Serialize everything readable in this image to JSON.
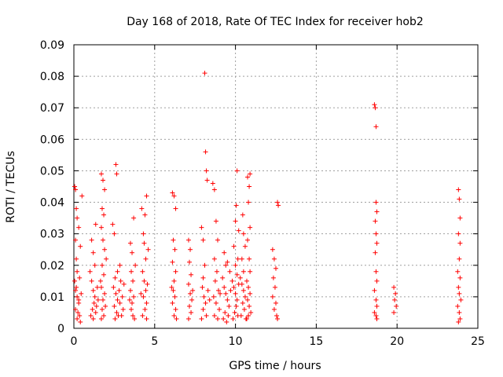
{
  "chart_data": {
    "type": "scatter",
    "title": "Day 168 of 2018, Rate Of TEC Index for receiver hob2",
    "xlabel": "GPS time / hours",
    "ylabel": "ROTI / TECUs",
    "xlim": [
      0,
      25
    ],
    "ylim": [
      0,
      0.09
    ],
    "x_ticks": [
      0,
      5,
      10,
      15,
      20,
      25
    ],
    "y_ticks": [
      0,
      0.01,
      0.02,
      0.03,
      0.04,
      0.05,
      0.06,
      0.07,
      0.08,
      0.09
    ],
    "y_tick_labels": [
      "0",
      "0.01",
      "0.02",
      "0.03",
      "0.04",
      "0.05",
      "0.06",
      "0.07",
      "0.08",
      "0.09"
    ],
    "grid": true,
    "marker": "+",
    "color": "#ff0000",
    "series": [
      {
        "points": [
          [
            0.05,
            0.045
          ],
          [
            0.1,
            0.044
          ],
          [
            0.15,
            0.038
          ],
          [
            0.2,
            0.035
          ],
          [
            0.3,
            0.032
          ],
          [
            0.1,
            0.028
          ],
          [
            0.15,
            0.022
          ],
          [
            0.2,
            0.018
          ],
          [
            0.05,
            0.015
          ],
          [
            0.1,
            0.012
          ],
          [
            0.2,
            0.01
          ],
          [
            0.3,
            0.008
          ],
          [
            0.1,
            0.006
          ],
          [
            0.25,
            0.005
          ],
          [
            0.35,
            0.004
          ],
          [
            0.2,
            0.003
          ],
          [
            0.4,
            0.002
          ],
          [
            0.3,
            0.009
          ],
          [
            0.15,
            0.013
          ],
          [
            0.45,
            0.011
          ],
          [
            0.5,
            0.042
          ],
          [
            0.4,
            0.026
          ],
          [
            0.35,
            0.016
          ],
          [
            1.0,
            0.018
          ],
          [
            1.1,
            0.015
          ],
          [
            1.2,
            0.012
          ],
          [
            1.3,
            0.01
          ],
          [
            1.25,
            0.008
          ],
          [
            1.15,
            0.006
          ],
          [
            1.35,
            0.005
          ],
          [
            1.05,
            0.004
          ],
          [
            1.2,
            0.003
          ],
          [
            1.4,
            0.007
          ],
          [
            1.3,
            0.02
          ],
          [
            1.2,
            0.024
          ],
          [
            1.1,
            0.028
          ],
          [
            1.35,
            0.033
          ],
          [
            1.45,
            0.013
          ],
          [
            1.5,
            0.009
          ],
          [
            1.7,
            0.049
          ],
          [
            1.8,
            0.047
          ],
          [
            1.9,
            0.044
          ],
          [
            1.75,
            0.038
          ],
          [
            1.85,
            0.036
          ],
          [
            1.7,
            0.032
          ],
          [
            1.8,
            0.028
          ],
          [
            1.9,
            0.025
          ],
          [
            1.75,
            0.02
          ],
          [
            1.85,
            0.017
          ],
          [
            1.7,
            0.013
          ],
          [
            1.9,
            0.011
          ],
          [
            1.8,
            0.009
          ],
          [
            1.75,
            0.006
          ],
          [
            1.85,
            0.004
          ],
          [
            1.7,
            0.003
          ],
          [
            1.95,
            0.007
          ],
          [
            1.65,
            0.015
          ],
          [
            2.0,
            0.022
          ],
          [
            2.4,
            0.033
          ],
          [
            2.5,
            0.03
          ],
          [
            2.6,
            0.052
          ],
          [
            2.65,
            0.049
          ],
          [
            2.55,
            0.016
          ],
          [
            2.45,
            0.013
          ],
          [
            2.6,
            0.011
          ],
          [
            2.7,
            0.009
          ],
          [
            2.5,
            0.007
          ],
          [
            2.65,
            0.005
          ],
          [
            2.75,
            0.004
          ],
          [
            2.55,
            0.003
          ],
          [
            2.8,
            0.012
          ],
          [
            2.9,
            0.015
          ],
          [
            3.0,
            0.01
          ],
          [
            2.85,
            0.008
          ],
          [
            3.05,
            0.006
          ],
          [
            2.95,
            0.004
          ],
          [
            3.1,
            0.014
          ],
          [
            2.7,
            0.018
          ],
          [
            2.85,
            0.02
          ],
          [
            3.5,
            0.027
          ],
          [
            3.6,
            0.024
          ],
          [
            3.7,
            0.035
          ],
          [
            3.55,
            0.018
          ],
          [
            3.65,
            0.015
          ],
          [
            3.5,
            0.012
          ],
          [
            3.7,
            0.01
          ],
          [
            3.6,
            0.008
          ],
          [
            3.55,
            0.006
          ],
          [
            3.65,
            0.004
          ],
          [
            3.75,
            0.003
          ],
          [
            3.45,
            0.009
          ],
          [
            3.8,
            0.02
          ],
          [
            4.2,
            0.038
          ],
          [
            4.3,
            0.03
          ],
          [
            4.5,
            0.042
          ],
          [
            4.4,
            0.036
          ],
          [
            4.35,
            0.027
          ],
          [
            4.45,
            0.022
          ],
          [
            4.25,
            0.018
          ],
          [
            4.35,
            0.015
          ],
          [
            4.45,
            0.012
          ],
          [
            4.3,
            0.01
          ],
          [
            4.5,
            0.008
          ],
          [
            4.4,
            0.006
          ],
          [
            4.25,
            0.004
          ],
          [
            4.5,
            0.003
          ],
          [
            4.15,
            0.011
          ],
          [
            4.55,
            0.014
          ],
          [
            4.6,
            0.025
          ],
          [
            6.1,
            0.043
          ],
          [
            6.2,
            0.042
          ],
          [
            6.3,
            0.038
          ],
          [
            6.15,
            0.028
          ],
          [
            6.25,
            0.025
          ],
          [
            6.1,
            0.021
          ],
          [
            6.3,
            0.018
          ],
          [
            6.2,
            0.015
          ],
          [
            6.15,
            0.012
          ],
          [
            6.25,
            0.01
          ],
          [
            6.1,
            0.008
          ],
          [
            6.3,
            0.006
          ],
          [
            6.2,
            0.004
          ],
          [
            6.35,
            0.003
          ],
          [
            6.05,
            0.013
          ],
          [
            7.1,
            0.028
          ],
          [
            7.2,
            0.025
          ],
          [
            7.15,
            0.021
          ],
          [
            7.25,
            0.017
          ],
          [
            7.1,
            0.014
          ],
          [
            7.2,
            0.011
          ],
          [
            7.3,
            0.009
          ],
          [
            7.15,
            0.007
          ],
          [
            7.25,
            0.005
          ],
          [
            7.1,
            0.003
          ],
          [
            7.35,
            0.012
          ],
          [
            7.9,
            0.032
          ],
          [
            8.0,
            0.028
          ],
          [
            8.1,
            0.081
          ],
          [
            8.15,
            0.056
          ],
          [
            8.2,
            0.05
          ],
          [
            8.25,
            0.047
          ],
          [
            8.1,
            0.02
          ],
          [
            8.0,
            0.016
          ],
          [
            7.95,
            0.013
          ],
          [
            8.05,
            0.01
          ],
          [
            8.15,
            0.008
          ],
          [
            8.0,
            0.006
          ],
          [
            8.2,
            0.004
          ],
          [
            7.9,
            0.003
          ],
          [
            8.3,
            0.012
          ],
          [
            8.4,
            0.009
          ],
          [
            8.6,
            0.046
          ],
          [
            8.7,
            0.044
          ],
          [
            8.8,
            0.034
          ],
          [
            8.9,
            0.028
          ],
          [
            8.7,
            0.022
          ],
          [
            8.85,
            0.018
          ],
          [
            8.75,
            0.015
          ],
          [
            8.95,
            0.012
          ],
          [
            8.65,
            0.01
          ],
          [
            8.8,
            0.008
          ],
          [
            9.0,
            0.006
          ],
          [
            8.7,
            0.004
          ],
          [
            8.9,
            0.003
          ],
          [
            9.05,
            0.011
          ],
          [
            9.2,
            0.016
          ],
          [
            9.3,
            0.013
          ],
          [
            9.4,
            0.011
          ],
          [
            9.5,
            0.009
          ],
          [
            9.6,
            0.007
          ],
          [
            9.35,
            0.005
          ],
          [
            9.55,
            0.004
          ],
          [
            9.25,
            0.003
          ],
          [
            9.45,
            0.002
          ],
          [
            9.7,
            0.012
          ],
          [
            9.65,
            0.018
          ],
          [
            9.5,
            0.021
          ],
          [
            9.3,
            0.024
          ],
          [
            9.4,
            0.02
          ],
          [
            9.8,
            0.015
          ],
          [
            9.9,
            0.013
          ],
          [
            10.0,
            0.011
          ],
          [
            10.1,
            0.009
          ],
          [
            10.05,
            0.007
          ],
          [
            9.95,
            0.005
          ],
          [
            10.15,
            0.004
          ],
          [
            9.85,
            0.003
          ],
          [
            10.2,
            0.014
          ],
          [
            10.1,
            0.017
          ],
          [
            10.0,
            0.02
          ],
          [
            9.9,
            0.026
          ],
          [
            10.0,
            0.034
          ],
          [
            10.05,
            0.039
          ],
          [
            10.1,
            0.05
          ],
          [
            10.2,
            0.031
          ],
          [
            10.15,
            0.022
          ],
          [
            10.3,
            0.016
          ],
          [
            10.4,
            0.014
          ],
          [
            10.5,
            0.012
          ],
          [
            10.6,
            0.01
          ],
          [
            10.45,
            0.008
          ],
          [
            10.55,
            0.006
          ],
          [
            10.35,
            0.004
          ],
          [
            10.65,
            0.003
          ],
          [
            10.5,
            0.018
          ],
          [
            10.4,
            0.022
          ],
          [
            10.6,
            0.026
          ],
          [
            10.5,
            0.03
          ],
          [
            10.45,
            0.036
          ],
          [
            10.7,
            0.015
          ],
          [
            10.8,
            0.013
          ],
          [
            10.9,
            0.011
          ],
          [
            10.75,
            0.009
          ],
          [
            10.85,
            0.007
          ],
          [
            10.95,
            0.005
          ],
          [
            10.8,
            0.004
          ],
          [
            10.7,
            0.003
          ],
          [
            10.9,
            0.018
          ],
          [
            10.85,
            0.022
          ],
          [
            10.75,
            0.028
          ],
          [
            10.9,
            0.032
          ],
          [
            10.8,
            0.04
          ],
          [
            10.85,
            0.045
          ],
          [
            10.75,
            0.048
          ],
          [
            10.9,
            0.049
          ],
          [
            12.3,
            0.025
          ],
          [
            12.4,
            0.022
          ],
          [
            12.5,
            0.019
          ],
          [
            12.35,
            0.016
          ],
          [
            12.45,
            0.013
          ],
          [
            12.3,
            0.01
          ],
          [
            12.5,
            0.008
          ],
          [
            12.4,
            0.006
          ],
          [
            12.55,
            0.004
          ],
          [
            12.6,
            0.003
          ],
          [
            12.6,
            0.04
          ],
          [
            12.65,
            0.039
          ],
          [
            18.6,
            0.071
          ],
          [
            18.65,
            0.07
          ],
          [
            18.7,
            0.064
          ],
          [
            18.7,
            0.04
          ],
          [
            18.75,
            0.037
          ],
          [
            18.65,
            0.034
          ],
          [
            18.7,
            0.03
          ],
          [
            18.75,
            0.027
          ],
          [
            18.65,
            0.024
          ],
          [
            18.7,
            0.018
          ],
          [
            18.75,
            0.015
          ],
          [
            18.6,
            0.012
          ],
          [
            18.7,
            0.009
          ],
          [
            18.75,
            0.007
          ],
          [
            18.6,
            0.005
          ],
          [
            18.7,
            0.004
          ],
          [
            18.75,
            0.003
          ],
          [
            19.8,
            0.013
          ],
          [
            19.9,
            0.011
          ],
          [
            19.85,
            0.009
          ],
          [
            19.95,
            0.007
          ],
          [
            19.8,
            0.005
          ],
          [
            23.8,
            0.044
          ],
          [
            23.85,
            0.041
          ],
          [
            23.9,
            0.035
          ],
          [
            23.8,
            0.03
          ],
          [
            23.9,
            0.027
          ],
          [
            23.85,
            0.022
          ],
          [
            23.75,
            0.018
          ],
          [
            23.9,
            0.016
          ],
          [
            23.8,
            0.013
          ],
          [
            23.85,
            0.011
          ],
          [
            23.95,
            0.009
          ],
          [
            23.75,
            0.007
          ],
          [
            23.85,
            0.005
          ],
          [
            23.9,
            0.003
          ],
          [
            23.8,
            0.002
          ]
        ]
      }
    ]
  }
}
